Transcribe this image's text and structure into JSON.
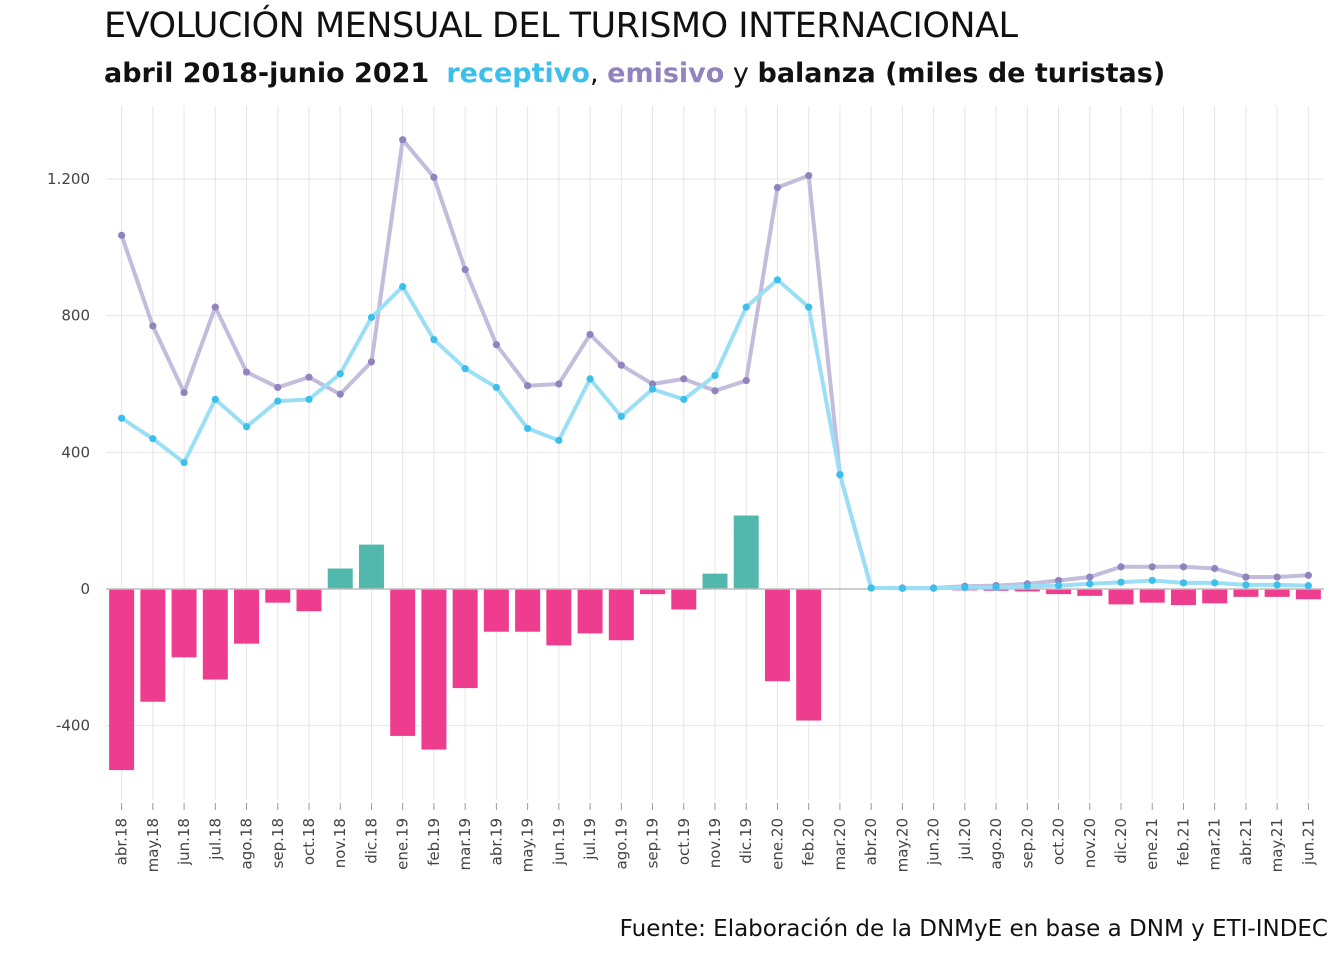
{
  "title": "EVOLUCIÓN MENSUAL DEL TURISMO INTERNACIONAL",
  "subtitle": {
    "period": "abril 2018-junio 2021",
    "receptivo": "receptivo",
    "comma": ",",
    "emisivo": "emisivo",
    "y": "y",
    "balanza": "balanza (miles de turistas)"
  },
  "caption": "Fuente: Elaboración de la DNMyE en base a DNM y ETI-INDEC",
  "colors": {
    "receptivo": "#3cc0eb",
    "emisivo": "#9283be",
    "balanza_pos": "#52b8ae",
    "balanza_neg": "#ee3d8f",
    "grid": "#e6e6e6"
  },
  "chart_data": {
    "type": "bar",
    "categories": [
      "abr.18",
      "may.18",
      "jun.18",
      "jul.18",
      "ago.18",
      "sep.18",
      "oct.18",
      "nov.18",
      "dic.18",
      "ene.19",
      "feb.19",
      "mar.19",
      "abr.19",
      "may.19",
      "jun.19",
      "jul.19",
      "ago.19",
      "sep.19",
      "oct.19",
      "nov.19",
      "dic.19",
      "ene.20",
      "feb.20",
      "mar.20",
      "abr.20",
      "may.20",
      "jun.20",
      "jul.20",
      "ago.20",
      "sep.20",
      "oct.20",
      "nov.20",
      "dic.20",
      "ene.21",
      "feb.21",
      "mar.21",
      "abr.21",
      "may.21",
      "jun.21"
    ],
    "series": [
      {
        "name": "receptivo",
        "type": "line",
        "values": [
          500,
          440,
          370,
          555,
          475,
          550,
          555,
          630,
          795,
          885,
          730,
          645,
          590,
          470,
          435,
          615,
          505,
          585,
          555,
          625,
          825,
          905,
          825,
          335,
          3,
          2,
          2,
          4,
          5,
          8,
          10,
          15,
          20,
          25,
          18,
          18,
          12,
          12,
          10
        ]
      },
      {
        "name": "emisivo",
        "type": "line",
        "values": [
          1035,
          770,
          575,
          825,
          635,
          590,
          620,
          570,
          665,
          1315,
          1205,
          935,
          715,
          595,
          600,
          745,
          655,
          600,
          615,
          580,
          610,
          1175,
          1210,
          335,
          3,
          3,
          3,
          8,
          10,
          15,
          25,
          35,
          65,
          65,
          65,
          60,
          35,
          35,
          40
        ]
      },
      {
        "name": "balanza",
        "type": "bar",
        "values": [
          -530,
          -330,
          -200,
          -265,
          -160,
          -40,
          -65,
          60,
          130,
          -430,
          -470,
          -290,
          -125,
          -125,
          -165,
          -130,
          -150,
          -15,
          -60,
          45,
          215,
          -270,
          -385,
          0,
          0,
          -1,
          -1,
          -4,
          -5,
          -7,
          -15,
          -20,
          -45,
          -40,
          -47,
          -42,
          -23,
          -23,
          -30
        ]
      }
    ],
    "yticks": [
      -400,
      0,
      400,
      800,
      1200
    ],
    "ytick_labels": [
      "-400",
      "0",
      "400",
      "800",
      "1.200"
    ],
    "ylim": [
      -580,
      1400
    ],
    "grid": true,
    "legend": "subtitle"
  }
}
